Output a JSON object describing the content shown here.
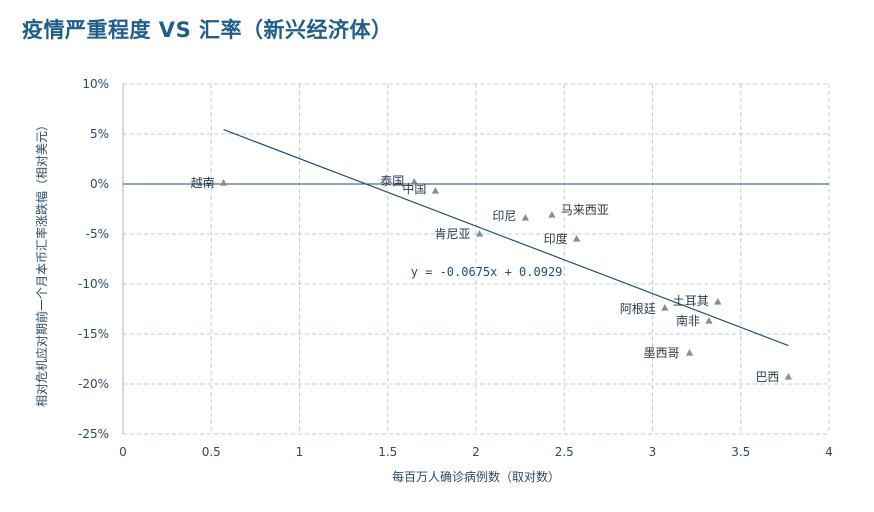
{
  "chart_data": {
    "type": "scatter",
    "title": "疫情严重程度 VS 汇率（新兴经济体）",
    "xlabel": "每百万人确诊病例数（取对数）",
    "ylabel": "相对危机应对期前一个月本币汇率涨跌幅（相对美元）",
    "xlim": [
      0,
      4
    ],
    "ylim": [
      -0.25,
      0.1
    ],
    "x_ticks": [
      "0",
      "0.5",
      "1",
      "1.5",
      "2",
      "2.5",
      "3",
      "3.5",
      "4"
    ],
    "x_tick_values": [
      0,
      0.5,
      1,
      1.5,
      2,
      2.5,
      3,
      3.5,
      4
    ],
    "y_ticks": [
      "10%",
      "5%",
      "0%",
      "-5%",
      "-10%",
      "-15%",
      "-20%",
      "-25%"
    ],
    "y_tick_values": [
      0.1,
      0.05,
      0,
      -0.05,
      -0.1,
      -0.15,
      -0.2,
      -0.25
    ],
    "grid": true,
    "points": [
      {
        "label": "越南",
        "x": 0.57,
        "y": 0.001
      },
      {
        "label": "泰国",
        "x": 1.65,
        "y": 0.002
      },
      {
        "label": "中国",
        "x": 1.77,
        "y": -0.007
      },
      {
        "label": "肯尼亚",
        "x": 2.02,
        "y": -0.05
      },
      {
        "label": "印尼",
        "x": 2.28,
        "y": -0.034
      },
      {
        "label": "马来西亚",
        "x": 2.43,
        "y": -0.031
      },
      {
        "label": "印度",
        "x": 2.57,
        "y": -0.055
      },
      {
        "label": "阿根廷",
        "x": 3.07,
        "y": -0.124
      },
      {
        "label": "土耳其",
        "x": 3.37,
        "y": -0.118
      },
      {
        "label": "南非",
        "x": 3.32,
        "y": -0.137
      },
      {
        "label": "墨西哥",
        "x": 3.21,
        "y": -0.169
      },
      {
        "label": "巴西",
        "x": 3.77,
        "y": -0.193
      }
    ],
    "trendline": {
      "slope": -0.0675,
      "intercept": 0.0929,
      "x_range": [
        0.57,
        3.77
      ],
      "equation": "y = -0.0675x + 0.0929"
    },
    "colors": {
      "title": "#1f5d8a",
      "trendline": "#1f4e79",
      "marker": "#8c8c8c",
      "grid": "#b7cde0",
      "axis": "#1f4e79"
    }
  }
}
